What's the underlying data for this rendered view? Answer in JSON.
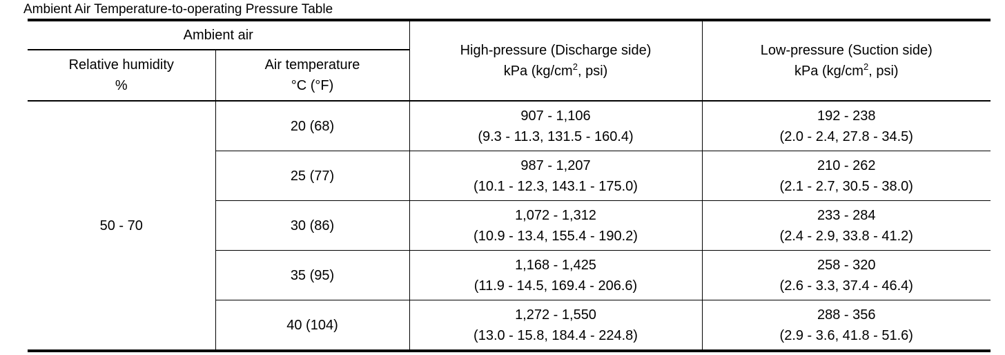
{
  "title": "Ambient Air Temperature-to-operating Pressure Table",
  "headers": {
    "ambient_air": "Ambient air",
    "relative_humidity": {
      "line1": "Relative humidity",
      "line2": "%"
    },
    "air_temperature": {
      "line1": "Air temperature",
      "line2": "°C (°F)"
    },
    "high_pressure": {
      "line1": "High-pressure (Discharge side)",
      "line2_prefix": "kPa (kg/cm",
      "line2_sup": "2",
      "line2_suffix": ", psi)"
    },
    "low_pressure": {
      "line1": "Low-pressure (Suction side)",
      "line2_prefix": "kPa (kg/cm",
      "line2_sup": "2",
      "line2_suffix": ", psi)"
    }
  },
  "relative_humidity_value": "50 - 70",
  "rows": [
    {
      "air_temperature": "20 (68)",
      "high": {
        "kpa": "907 - 1,106",
        "alt": "(9.3 - 11.3, 131.5 - 160.4)"
      },
      "low": {
        "kpa": "192 - 238",
        "alt": "(2.0 - 2.4, 27.8 - 34.5)"
      }
    },
    {
      "air_temperature": "25 (77)",
      "high": {
        "kpa": "987 - 1,207",
        "alt": "(10.1 - 12.3, 143.1 - 175.0)"
      },
      "low": {
        "kpa": "210 - 262",
        "alt": "(2.1 - 2.7, 30.5 - 38.0)"
      }
    },
    {
      "air_temperature": "30 (86)",
      "high": {
        "kpa": "1,072 - 1,312",
        "alt": "(10.9 - 13.4, 155.4 - 190.2)"
      },
      "low": {
        "kpa": "233 - 284",
        "alt": "(2.4 - 2.9, 33.8 - 41.2)"
      }
    },
    {
      "air_temperature": "35 (95)",
      "high": {
        "kpa": "1,168 - 1,425",
        "alt": "(11.9 - 14.5, 169.4 - 206.6)"
      },
      "low": {
        "kpa": "258 - 320",
        "alt": "(2.6 - 3.3, 37.4 - 46.4)"
      }
    },
    {
      "air_temperature": "40 (104)",
      "high": {
        "kpa": "1,272 - 1,550",
        "alt": "(13.0 - 15.8, 184.4 - 224.8)"
      },
      "low": {
        "kpa": "288 - 356",
        "alt": "(2.9 - 3.6, 41.8 - 51.6)"
      }
    }
  ]
}
